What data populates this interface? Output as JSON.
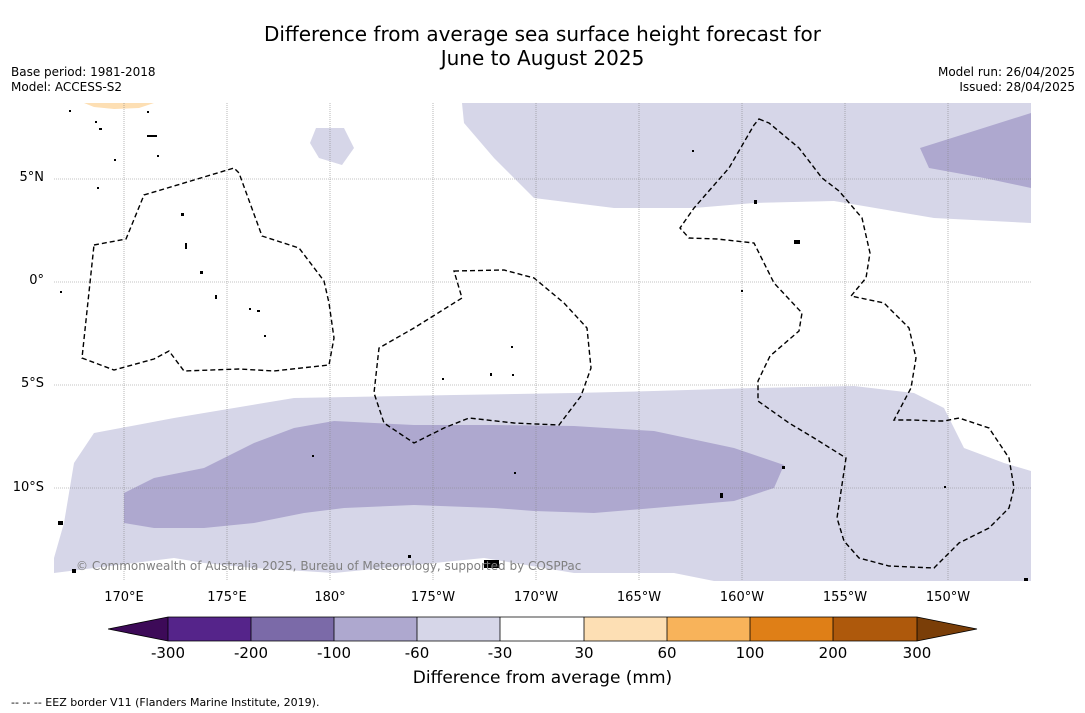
{
  "title": {
    "line1": "Difference from average sea surface height forecast for",
    "line2": "June to August 2025"
  },
  "meta": {
    "base_period": "Base period: 1981-2018",
    "model": "Model: ACCESS-S2",
    "model_run": "Model run: 26/04/2025",
    "issued": "Issued: 28/04/2025"
  },
  "map": {
    "lat_labels": [
      "5°N",
      "0°",
      "5°S",
      "10°S"
    ],
    "lon_labels": [
      "170°E",
      "175°E",
      "180°",
      "175°W",
      "170°W",
      "165°W",
      "160°W",
      "155°W",
      "150°W"
    ],
    "copyright": "© Commonwealth of Australia 2025, Bureau of Meteorology, supported by COSPPac"
  },
  "colorbar": {
    "label": "Difference from average (mm)",
    "ticks": [
      "-300",
      "-200",
      "-100",
      "-60",
      "-30",
      "30",
      "60",
      "100",
      "200",
      "300"
    ],
    "colors": {
      "below_-300": "#3d0a58",
      "-300_-200": "#55248a",
      "-200_-100": "#7b6aa8",
      "-100_-60": "#aea8cf",
      "-60_-30": "#d6d6e8",
      "-30_30": "#ffffff",
      "30_60": "#fddfb4",
      "60_100": "#f8b35a",
      "100_200": "#df7f17",
      "200_300": "#ae590c",
      "above_300": "#7a3e08"
    }
  },
  "legend": {
    "eez": "--  --  -- EEZ border V11 (Flanders Marine Institute, 2019)."
  }
}
